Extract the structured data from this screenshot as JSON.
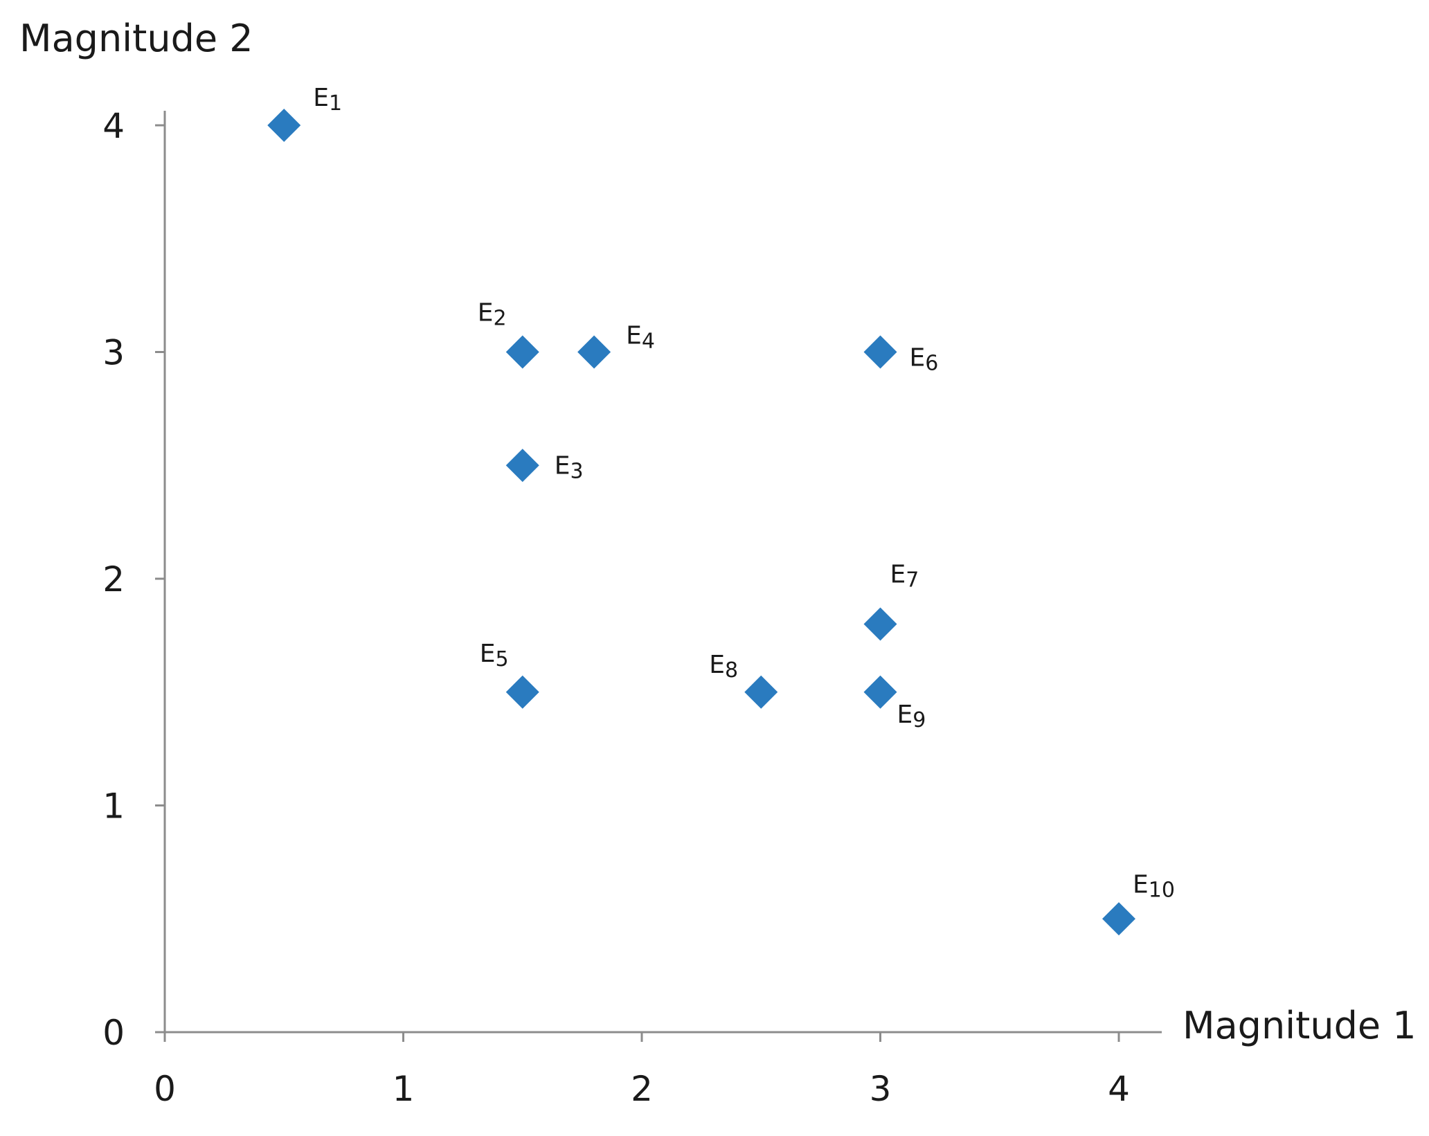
{
  "chart_data": {
    "type": "scatter",
    "xlabel": "Magnitude 1",
    "ylabel": "Magnitude 2",
    "xlim": [
      0,
      4
    ],
    "ylim": [
      0,
      4
    ],
    "x_ticks": [
      "0",
      "1",
      "2",
      "3",
      "4"
    ],
    "y_ticks": [
      "0",
      "1",
      "2",
      "3",
      "4"
    ],
    "grid": false,
    "marker": "diamond",
    "marker_color": "#2a7bbf",
    "points": [
      {
        "label": "E",
        "sub": "1",
        "x": 0.5,
        "y": 4.0
      },
      {
        "label": "E",
        "sub": "2",
        "x": 1.5,
        "y": 3.0
      },
      {
        "label": "E",
        "sub": "3",
        "x": 1.5,
        "y": 2.5
      },
      {
        "label": "E",
        "sub": "4",
        "x": 1.8,
        "y": 3.0
      },
      {
        "label": "E",
        "sub": "5",
        "x": 1.5,
        "y": 1.5
      },
      {
        "label": "E",
        "sub": "6",
        "x": 3.0,
        "y": 3.0
      },
      {
        "label": "E",
        "sub": "7",
        "x": 3.0,
        "y": 1.8
      },
      {
        "label": "E",
        "sub": "8",
        "x": 2.5,
        "y": 1.5
      },
      {
        "label": "E",
        "sub": "9",
        "x": 3.0,
        "y": 1.5
      },
      {
        "label": "E",
        "sub": "10",
        "x": 4.0,
        "y": 0.5
      }
    ]
  }
}
